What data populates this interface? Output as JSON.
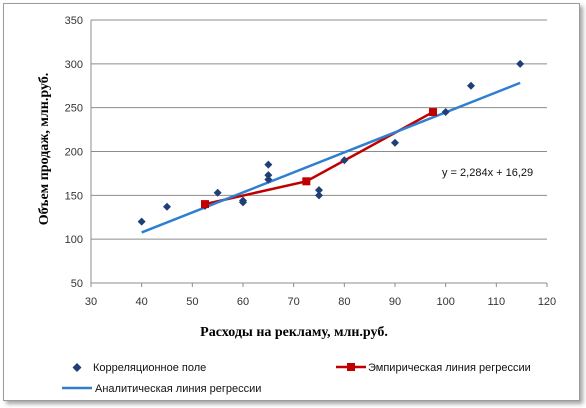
{
  "chart_data": {
    "type": "scatter",
    "xlabel": "Расходы на рекламу, млн.руб.",
    "ylabel": "Объем продаж, млн.руб.",
    "xlim": [
      30,
      120
    ],
    "ylim": [
      50,
      350
    ],
    "xticks": [
      "30",
      "40",
      "50",
      "60",
      "70",
      "80",
      "90",
      "100",
      "110",
      "120"
    ],
    "yticks": [
      "50",
      "100",
      "150",
      "200",
      "250",
      "300",
      "350"
    ],
    "grid": "horizontal",
    "legend_position": "bottom",
    "annotation": "y = 2,284x + 16,29",
    "series": [
      {
        "name": "Корреляционное поле",
        "kind": "points",
        "marker": "diamond",
        "color": "#1f3f77",
        "x": [
          40,
          45,
          52.5,
          55,
          60,
          60,
          65,
          65,
          65,
          75,
          75,
          80,
          90,
          100,
          105,
          114.7
        ],
        "y": [
          120,
          137,
          138,
          153,
          142,
          144,
          168,
          173,
          185,
          150,
          156,
          190,
          210,
          245,
          275,
          300
        ]
      },
      {
        "name": "Эмпирическая линия регрессии",
        "kind": "line-with-markers",
        "marker": "square",
        "color": "#c00000",
        "x": [
          52.5,
          72.5,
          97.5
        ],
        "y": [
          140,
          166,
          245
        ]
      },
      {
        "name": "Аналитическая линия регрессии",
        "kind": "line",
        "color": "#2f7fd1",
        "x": [
          40,
          114.7
        ],
        "y": [
          107.65,
          278.27
        ]
      }
    ]
  }
}
